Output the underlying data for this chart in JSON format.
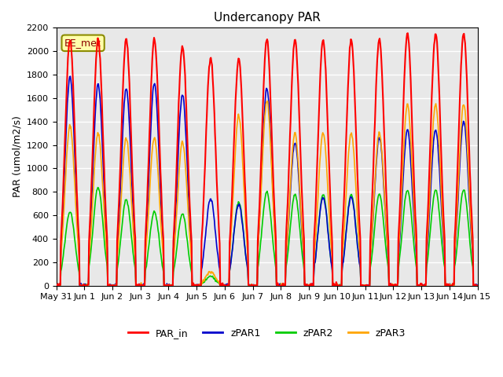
{
  "title": "Undercanopy PAR",
  "ylabel": "PAR (umol/m2/s)",
  "annotation": "EE_met",
  "ylim": [
    0,
    2200
  ],
  "background_color": "#e8e8e8",
  "grid_color": "white",
  "series": {
    "PAR_in": {
      "color": "#ff0000",
      "lw": 1.5
    },
    "zPAR1": {
      "color": "#0000cc",
      "lw": 1.2
    },
    "zPAR2": {
      "color": "#00cc00",
      "lw": 1.2
    },
    "zPAR3": {
      "color": "#ffa500",
      "lw": 1.2
    }
  },
  "x_tick_labels": [
    "May 31",
    "Jun 1",
    "Jun 2",
    "Jun 3",
    "Jun 4",
    "Jun 5",
    "Jun 6",
    "Jun 7",
    "Jun 8",
    "Jun 9",
    "Jun 10",
    "Jun 11",
    "Jun 12",
    "Jun 13",
    "Jun 14",
    "Jun 15"
  ],
  "x_tick_positions": [
    0,
    1,
    2,
    3,
    4,
    5,
    6,
    7,
    8,
    9,
    10,
    11,
    12,
    13,
    14,
    15
  ],
  "n_days": 15,
  "samples_per_day": 48
}
